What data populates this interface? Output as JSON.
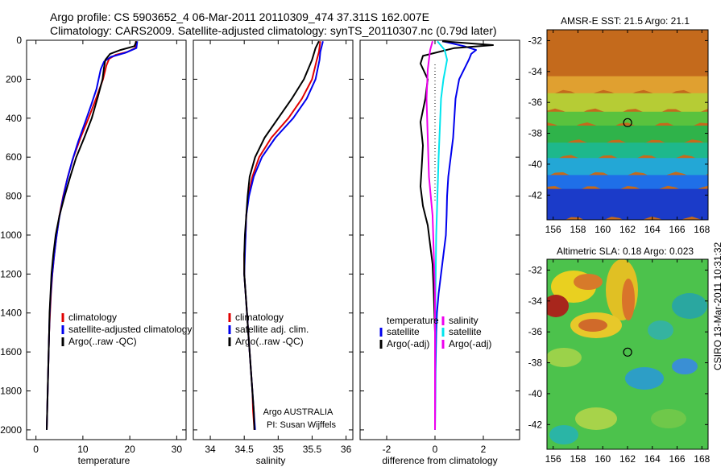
{
  "header": {
    "line1": "Argo profile: CS 5903652_4 06-Mar-2011 20110309_474 37.311S 162.007E",
    "line2": "Climatology: CARS2009. Satellite-adjusted climatology: synTS_20110307.nc (0.79d later)"
  },
  "colors": {
    "climatology": "#e00000",
    "satellite": "#0000ee",
    "argo": "#000000",
    "sat_salinity": "#00e5ee",
    "argo_salinity": "#ee00ee"
  },
  "chart_data": [
    {
      "type": "line",
      "panel": "temperature",
      "xlabel": "temperature",
      "xlim": [
        -2,
        32
      ],
      "ylim": [
        2050,
        0
      ],
      "xticks": [
        0,
        10,
        20,
        30
      ],
      "yticks": [
        0,
        200,
        400,
        600,
        800,
        1000,
        1200,
        1400,
        1600,
        1800,
        2000
      ],
      "legend": [
        "climatology",
        "satellite-adjusted climatology",
        "Argo(..raw -QC)"
      ],
      "legend_loc": "lower-right",
      "series": [
        {
          "name": "climatology",
          "color_key": "climatology",
          "points": [
            [
              21.3,
              5
            ],
            [
              21.2,
              40
            ],
            [
              19.5,
              60
            ],
            [
              17.0,
              75
            ],
            [
              15.6,
              95
            ],
            [
              15.0,
              130
            ],
            [
              14.3,
              200
            ],
            [
              12.8,
              300
            ],
            [
              11.2,
              400
            ],
            [
              9.5,
              500
            ],
            [
              8.0,
              600
            ],
            [
              6.8,
              700
            ],
            [
              5.8,
              800
            ],
            [
              5.0,
              900
            ],
            [
              4.4,
              1000
            ],
            [
              3.9,
              1100
            ],
            [
              3.5,
              1200
            ],
            [
              3.2,
              1300
            ],
            [
              3.0,
              1400
            ],
            [
              2.8,
              1500
            ],
            [
              2.7,
              1600
            ],
            [
              2.6,
              1700
            ],
            [
              2.5,
              1800
            ],
            [
              2.4,
              1900
            ],
            [
              2.3,
              2000
            ]
          ]
        },
        {
          "name": "satellite-adjusted climatology",
          "color_key": "satellite",
          "points": [
            [
              21.6,
              5
            ],
            [
              21.4,
              40
            ],
            [
              19.0,
              65
            ],
            [
              16.0,
              85
            ],
            [
              14.5,
              110
            ],
            [
              13.8,
              150
            ],
            [
              12.9,
              250
            ],
            [
              11.8,
              330
            ],
            [
              10.5,
              420
            ],
            [
              9.0,
              520
            ],
            [
              7.7,
              620
            ],
            [
              6.6,
              720
            ],
            [
              5.7,
              820
            ],
            [
              4.9,
              920
            ],
            [
              4.3,
              1020
            ],
            [
              3.8,
              1120
            ],
            [
              3.4,
              1220
            ],
            [
              3.1,
              1320
            ],
            [
              2.9,
              1420
            ],
            [
              2.8,
              1500
            ],
            [
              2.7,
              1600
            ],
            [
              2.6,
              1700
            ],
            [
              2.5,
              1800
            ],
            [
              2.4,
              1900
            ],
            [
              2.3,
              2000
            ]
          ]
        },
        {
          "name": "Argo(..raw -QC)",
          "color_key": "argo",
          "points": [
            [
              21.4,
              5
            ],
            [
              21.0,
              30
            ],
            [
              18.0,
              50
            ],
            [
              15.8,
              70
            ],
            [
              14.8,
              100
            ],
            [
              14.5,
              140
            ],
            [
              14.2,
              200
            ],
            [
              13.2,
              290
            ],
            [
              11.9,
              400
            ],
            [
              10.3,
              500
            ],
            [
              8.6,
              600
            ],
            [
              7.3,
              700
            ],
            [
              6.1,
              800
            ],
            [
              5.0,
              900
            ],
            [
              4.2,
              1000
            ],
            [
              3.7,
              1100
            ],
            [
              3.3,
              1200
            ],
            [
              3.1,
              1300
            ],
            [
              2.9,
              1400
            ],
            [
              2.8,
              1500
            ],
            [
              2.7,
              1600
            ],
            [
              2.6,
              1700
            ],
            [
              2.5,
              1800
            ],
            [
              2.4,
              1900
            ],
            [
              2.3,
              2000
            ]
          ]
        }
      ]
    },
    {
      "type": "line",
      "panel": "salinity",
      "xlabel": "salinity",
      "xlim": [
        33.75,
        36.1
      ],
      "ylim": [
        2050,
        0
      ],
      "xticks": [
        34,
        34.5,
        35,
        35.5,
        36
      ],
      "legend": [
        "climatology",
        "satellite adj. clim.",
        "Argo(..raw -QC)"
      ],
      "legend_loc": "lower-right",
      "annotation": [
        "Argo AUSTRALIA",
        "PI: Susan Wijffels"
      ],
      "series": [
        {
          "name": "climatology",
          "color_key": "climatology",
          "points": [
            [
              35.62,
              5
            ],
            [
              35.6,
              60
            ],
            [
              35.57,
              100
            ],
            [
              35.5,
              200
            ],
            [
              35.35,
              300
            ],
            [
              35.15,
              400
            ],
            [
              34.9,
              500
            ],
            [
              34.72,
              600
            ],
            [
              34.62,
              700
            ],
            [
              34.56,
              800
            ],
            [
              34.53,
              900
            ],
            [
              34.52,
              1000
            ],
            [
              34.5,
              1100
            ],
            [
              34.5,
              1200
            ],
            [
              34.52,
              1300
            ],
            [
              34.54,
              1400
            ],
            [
              34.56,
              1500
            ],
            [
              34.58,
              1600
            ],
            [
              34.6,
              1700
            ],
            [
              34.62,
              1800
            ],
            [
              34.63,
              1900
            ],
            [
              34.65,
              2000
            ]
          ]
        },
        {
          "name": "satellite adj. clim.",
          "color_key": "satellite",
          "points": [
            [
              35.66,
              5
            ],
            [
              35.62,
              60
            ],
            [
              35.61,
              100
            ],
            [
              35.55,
              200
            ],
            [
              35.42,
              300
            ],
            [
              35.22,
              400
            ],
            [
              34.96,
              500
            ],
            [
              34.76,
              600
            ],
            [
              34.64,
              700
            ],
            [
              34.57,
              800
            ],
            [
              34.53,
              900
            ],
            [
              34.52,
              1000
            ],
            [
              34.51,
              1100
            ],
            [
              34.5,
              1200
            ],
            [
              34.52,
              1300
            ],
            [
              34.54,
              1400
            ],
            [
              34.56,
              1500
            ],
            [
              34.58,
              1600
            ],
            [
              34.6,
              1700
            ],
            [
              34.62,
              1800
            ],
            [
              34.64,
              1900
            ],
            [
              34.66,
              2000
            ]
          ]
        },
        {
          "name": "Argo(..raw -QC)",
          "color_key": "argo",
          "points": [
            [
              35.6,
              5
            ],
            [
              35.55,
              40
            ],
            [
              35.5,
              100
            ],
            [
              35.38,
              200
            ],
            [
              35.2,
              300
            ],
            [
              35.0,
              400
            ],
            [
              34.8,
              500
            ],
            [
              34.66,
              600
            ],
            [
              34.58,
              700
            ],
            [
              34.55,
              800
            ],
            [
              34.53,
              900
            ],
            [
              34.51,
              1000
            ],
            [
              34.5,
              1100
            ],
            [
              34.5,
              1200
            ],
            [
              34.52,
              1300
            ],
            [
              34.54,
              1400
            ],
            [
              34.56,
              1500
            ],
            [
              34.58,
              1600
            ],
            [
              34.6,
              1700
            ],
            [
              34.62,
              1800
            ],
            [
              34.64,
              1900
            ],
            [
              34.65,
              2000
            ]
          ]
        }
      ]
    },
    {
      "type": "line",
      "panel": "difference",
      "xlabel": "difference from climatology",
      "xlim": [
        -3.1,
        3.5
      ],
      "ylim": [
        2050,
        0
      ],
      "xticks": [
        -2,
        0,
        2
      ],
      "zero_line": true,
      "legend_left_title": "temperature",
      "legend_right_title": "salinity",
      "legend_left": [
        "satellite",
        "Argo(-adj)"
      ],
      "legend_right": [
        "satellite",
        "Argo(-adj)"
      ],
      "legend_loc": "lower-right",
      "series": [
        {
          "name": "satellite",
          "group": "temperature",
          "color_key": "satellite",
          "points": [
            [
              0.3,
              5
            ],
            [
              1.2,
              30
            ],
            [
              1.7,
              50
            ],
            [
              1.5,
              70
            ],
            [
              1.4,
              100
            ],
            [
              1.2,
              150
            ],
            [
              1.0,
              200
            ],
            [
              0.85,
              300
            ],
            [
              0.8,
              400
            ],
            [
              0.75,
              500
            ],
            [
              0.65,
              600
            ],
            [
              0.55,
              700
            ],
            [
              0.5,
              800
            ],
            [
              0.48,
              900
            ],
            [
              0.45,
              1000
            ],
            [
              0.35,
              1100
            ],
            [
              0.25,
              1200
            ],
            [
              0.15,
              1300
            ],
            [
              0.08,
              1400
            ],
            [
              0.05,
              1500
            ],
            [
              0.02,
              1700
            ],
            [
              0.0,
              2000
            ]
          ]
        },
        {
          "name": "Argo(-adj)",
          "group": "temperature",
          "color_key": "argo",
          "points": [
            [
              0.3,
              5
            ],
            [
              2.4,
              25
            ],
            [
              0.8,
              40
            ],
            [
              -0.5,
              80
            ],
            [
              -0.6,
              120
            ],
            [
              -0.3,
              200
            ],
            [
              -0.4,
              300
            ],
            [
              -0.6,
              420
            ],
            [
              -0.5,
              540
            ],
            [
              -0.55,
              650
            ],
            [
              -0.6,
              750
            ],
            [
              -0.5,
              850
            ],
            [
              -0.3,
              950
            ],
            [
              -0.2,
              1050
            ],
            [
              -0.1,
              1150
            ],
            [
              -0.05,
              1300
            ],
            [
              0.0,
              1500
            ],
            [
              0.0,
              2000
            ]
          ]
        },
        {
          "name": "satellite",
          "group": "salinity",
          "color_key": "sat_salinity",
          "points": [
            [
              0.1,
              5
            ],
            [
              0.4,
              50
            ],
            [
              0.5,
              100
            ],
            [
              0.35,
              200
            ],
            [
              0.25,
              300
            ],
            [
              0.2,
              450
            ],
            [
              0.15,
              600
            ],
            [
              0.1,
              800
            ],
            [
              0.05,
              1000
            ],
            [
              0.02,
              1300
            ],
            [
              0.0,
              2000
            ]
          ]
        },
        {
          "name": "Argo(-adj)",
          "group": "salinity",
          "color_key": "argo_salinity",
          "points": [
            [
              -0.1,
              5
            ],
            [
              -0.2,
              50
            ],
            [
              -0.3,
              150
            ],
            [
              -0.35,
              300
            ],
            [
              -0.3,
              500
            ],
            [
              -0.25,
              700
            ],
            [
              -0.1,
              900
            ],
            [
              -0.05,
              1100
            ],
            [
              0.0,
              1300
            ],
            [
              0.0,
              2000
            ]
          ]
        }
      ]
    },
    {
      "type": "heatmap",
      "panel": "sst-map",
      "title": "AMSR-E SST: 21.5 Argo: 21.1",
      "xlim": [
        155.5,
        168.5
      ],
      "ylim": [
        -43.6,
        -31.3
      ],
      "xticks": [
        156,
        158,
        160,
        162,
        164,
        166,
        168
      ],
      "yticks": [
        -32,
        -34,
        -36,
        -38,
        -40,
        -42
      ],
      "marker": [
        162.007,
        -37.311
      ],
      "bands": [
        {
          "from": -31.3,
          "to": -34.3,
          "color": "#c46a1c"
        },
        {
          "from": -34.3,
          "to": -35.4,
          "color": "#e0a030"
        },
        {
          "from": -35.4,
          "to": -36.6,
          "color": "#b6cc35"
        },
        {
          "from": -36.6,
          "to": -37.5,
          "color": "#5ac23e"
        },
        {
          "from": -37.5,
          "to": -38.6,
          "color": "#2fb34a"
        },
        {
          "from": -38.6,
          "to": -39.6,
          "color": "#1eb88c"
        },
        {
          "from": -39.6,
          "to": -40.7,
          "color": "#23a7d6"
        },
        {
          "from": -40.7,
          "to": -41.6,
          "color": "#1f6fe8"
        },
        {
          "from": -41.6,
          "to": -43.6,
          "color": "#1b3bc9"
        }
      ]
    },
    {
      "type": "heatmap",
      "panel": "sla-map",
      "title": "Altimetric SLA: 0.18 Argo: 0.023",
      "xlim": [
        155.5,
        168.5
      ],
      "ylim": [
        -43.6,
        -31.3
      ],
      "xticks": [
        156,
        158,
        160,
        162,
        164,
        166,
        168
      ],
      "yticks": [
        -32,
        -34,
        -36,
        -38,
        -40,
        -42
      ],
      "marker": [
        162.007,
        -37.311
      ],
      "background": "#4cc24c"
    }
  ],
  "side_text": "CSIRO 13-Mar-2011 10:31:32"
}
